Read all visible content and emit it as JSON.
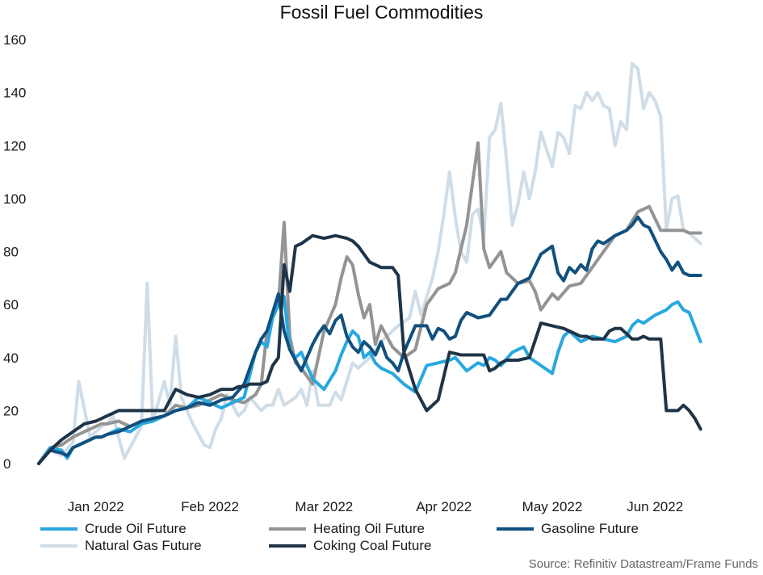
{
  "chart_data": {
    "type": "line",
    "title": "Fossil Fuel Commodities",
    "source": "Source: Refinitiv Datastream/Frame Funds",
    "ylim": [
      0,
      160
    ],
    "yticks": [
      0,
      20,
      40,
      60,
      80,
      100,
      120,
      140,
      160
    ],
    "xlim": [
      0,
      120
    ],
    "xticks": [
      {
        "label": "Jan 2022",
        "x": 10
      },
      {
        "label": "Feb 2022",
        "x": 30
      },
      {
        "label": "Mar 2022",
        "x": 50
      },
      {
        "label": "Apr 2022",
        "x": 71
      },
      {
        "label": "May 2022",
        "x": 90
      },
      {
        "label": "Jun 2022",
        "x": 108
      }
    ],
    "grid": false,
    "legend_position": "bottom",
    "series": [
      {
        "name": "Natural Gas Future",
        "color": "#cfdde8",
        "x": [
          0,
          2,
          4,
          6,
          7,
          9,
          11,
          12,
          13,
          15,
          17,
          18,
          19,
          20,
          22,
          23,
          24,
          25,
          26,
          27,
          29,
          30,
          31,
          32,
          33,
          35,
          36,
          37,
          39,
          40,
          41,
          42,
          43,
          45,
          46,
          47,
          48,
          49,
          51,
          52,
          53,
          55,
          56,
          58,
          60,
          62,
          63,
          65,
          66,
          67,
          69,
          70,
          71,
          72,
          73,
          74,
          75,
          76,
          77,
          78,
          79,
          80,
          81,
          82,
          83,
          84,
          85,
          86,
          87,
          88,
          90,
          91,
          92,
          93,
          94,
          95,
          96,
          97,
          98,
          99,
          100,
          101,
          102,
          103,
          104,
          105,
          106,
          107,
          108,
          109,
          110,
          111,
          112,
          113,
          114,
          115,
          116
        ],
        "values": [
          0,
          5,
          3,
          8,
          31,
          10,
          14,
          15,
          18,
          2,
          10,
          14,
          68,
          16,
          31,
          22,
          48,
          25,
          20,
          15,
          7,
          6,
          13,
          17,
          26,
          18,
          20,
          25,
          20,
          22,
          22,
          28,
          22,
          25,
          28,
          22,
          35,
          22,
          22,
          27,
          24,
          38,
          36,
          40,
          46,
          50,
          52,
          55,
          65,
          56,
          70,
          80,
          94,
          110,
          93,
          80,
          76,
          94,
          96,
          85,
          123,
          126,
          136,
          114,
          90,
          98,
          110,
          100,
          110,
          125,
          112,
          125,
          123,
          117,
          135,
          134,
          140,
          137,
          140,
          135,
          134,
          120,
          129,
          126,
          151,
          149,
          134,
          140,
          137,
          131,
          88,
          100,
          101,
          88,
          87,
          85,
          83
        ],
        "line_width": 4
      },
      {
        "name": "Heating Oil Future",
        "color": "#949494",
        "x": [
          0,
          2,
          4,
          6,
          8,
          10,
          11,
          12,
          14,
          16,
          18,
          20,
          22,
          24,
          26,
          28,
          30,
          32,
          34,
          36,
          38,
          39,
          40,
          42,
          43,
          44,
          45,
          46,
          48,
          50,
          52,
          53,
          54,
          55,
          56,
          57,
          58,
          59,
          60,
          62,
          64,
          66,
          68,
          70,
          72,
          73,
          75,
          77,
          78,
          79,
          81,
          82,
          84,
          86,
          87,
          88,
          90,
          91,
          93,
          95,
          97,
          99,
          101,
          103,
          105,
          107,
          109,
          111,
          113,
          114,
          116
        ],
        "values": [
          0,
          6,
          7,
          10,
          12,
          14,
          15,
          15,
          16,
          14,
          16,
          16,
          18,
          22,
          21,
          22,
          24,
          26,
          24,
          23,
          26,
          30,
          50,
          60,
          91,
          48,
          38,
          36,
          30,
          50,
          60,
          70,
          78,
          75,
          64,
          55,
          60,
          45,
          52,
          44,
          40,
          43,
          60,
          66,
          68,
          72,
          90,
          121,
          81,
          74,
          80,
          72,
          68,
          69,
          65,
          58,
          64,
          62,
          67,
          68,
          74,
          80,
          86,
          88,
          95,
          97,
          88,
          88,
          88,
          87,
          87
        ],
        "line_width": 4
      },
      {
        "name": "Crude Oil Future",
        "color": "#29a8df",
        "x": [
          0,
          2,
          4,
          5,
          6,
          8,
          10,
          11,
          12,
          14,
          16,
          18,
          20,
          22,
          24,
          26,
          28,
          30,
          32,
          34,
          36,
          38,
          39,
          40,
          41,
          42,
          43,
          44,
          45,
          46,
          48,
          50,
          52,
          53,
          54,
          55,
          56,
          57,
          58,
          59,
          60,
          62,
          64,
          66,
          68,
          70,
          72,
          73,
          75,
          77,
          78,
          79,
          80,
          81,
          83,
          85,
          86,
          88,
          90,
          91,
          92,
          93,
          95,
          97,
          99,
          101,
          103,
          104,
          105,
          106,
          108,
          110,
          111,
          112,
          113,
          114,
          116
        ],
        "values": [
          0,
          6,
          5,
          2,
          6,
          8,
          10,
          10,
          11,
          13,
          12,
          15,
          16,
          18,
          20,
          21,
          25,
          23,
          21,
          23,
          25,
          42,
          46,
          44,
          55,
          60,
          63,
          43,
          40,
          42,
          32,
          28,
          35,
          41,
          46,
          50,
          48,
          40,
          42,
          38,
          36,
          34,
          30,
          27,
          37,
          38,
          39,
          40,
          35,
          38,
          37,
          40,
          39,
          37,
          42,
          44,
          40,
          37,
          34,
          42,
          48,
          50,
          46,
          48,
          47,
          46,
          48,
          52,
          54,
          53,
          56,
          58,
          60,
          61,
          58,
          57,
          46
        ],
        "line_width": 4
      },
      {
        "name": "Gasoline Future",
        "color": "#11507f",
        "x": [
          0,
          2,
          4,
          5,
          6,
          8,
          10,
          11,
          12,
          14,
          16,
          17,
          18,
          20,
          22,
          24,
          26,
          28,
          30,
          32,
          34,
          36,
          38,
          39,
          40,
          41,
          42,
          43,
          44,
          46,
          48,
          49,
          50,
          51,
          52,
          53,
          54,
          55,
          56,
          57,
          58,
          59,
          60,
          61,
          62,
          63,
          64,
          66,
          68,
          69,
          70,
          71,
          72,
          73,
          74,
          75,
          77,
          79,
          80,
          81,
          82,
          83,
          84,
          86,
          88,
          90,
          91,
          92,
          93,
          94,
          95,
          96,
          97,
          98,
          99,
          101,
          103,
          104,
          105,
          106,
          107,
          109,
          110,
          111,
          112,
          113,
          114,
          115,
          116
        ],
        "values": [
          0,
          5,
          4,
          3,
          6,
          8,
          10,
          10,
          11,
          12,
          14,
          15,
          16,
          17,
          18,
          20,
          21,
          23,
          22,
          24,
          25,
          30,
          42,
          47,
          50,
          57,
          64,
          50,
          43,
          35,
          45,
          49,
          52,
          49,
          54,
          56,
          48,
          44,
          42,
          46,
          44,
          41,
          46,
          40,
          38,
          35,
          42,
          52,
          52,
          47,
          51,
          50,
          47,
          48,
          54,
          57,
          55,
          56,
          59,
          62,
          62,
          65,
          68,
          70,
          79,
          82,
          72,
          69,
          74,
          72,
          75,
          73,
          81,
          84,
          83,
          86,
          88,
          90,
          93,
          90,
          89,
          80,
          77,
          73,
          76,
          72,
          71,
          71,
          71
        ],
        "line_width": 4
      },
      {
        "name": "Coking Coal Future",
        "color": "#1e3549",
        "x": [
          0,
          2,
          4,
          6,
          8,
          10,
          12,
          14,
          16,
          18,
          20,
          22,
          24,
          26,
          28,
          30,
          32,
          34,
          35,
          36,
          37,
          38,
          39,
          40,
          41,
          42,
          43,
          44,
          45,
          46,
          48,
          50,
          52,
          54,
          55,
          56,
          58,
          60,
          62,
          63,
          64,
          66,
          68,
          70,
          72,
          74,
          76,
          78,
          79,
          80,
          81,
          82,
          84,
          86,
          88,
          90,
          92,
          94,
          95,
          96,
          97,
          98,
          99,
          100,
          101,
          102,
          103,
          104,
          105,
          106,
          107,
          109,
          110,
          111,
          112,
          113,
          114,
          115,
          116
        ],
        "values": [
          0,
          5,
          9,
          12,
          15,
          16,
          18,
          20,
          20,
          20,
          20,
          20,
          28,
          26,
          25,
          26,
          28,
          28,
          29,
          29,
          30,
          30,
          30,
          31,
          37,
          40,
          75,
          65,
          82,
          83,
          86,
          85,
          86,
          85,
          84,
          82,
          76,
          74,
          74,
          71,
          42,
          28,
          20,
          24,
          42,
          41,
          41,
          41,
          35,
          36,
          38,
          39,
          39,
          40,
          53,
          52,
          51,
          49,
          48,
          48,
          47,
          47,
          47,
          50,
          51,
          51,
          49,
          47,
          47,
          48,
          47,
          47,
          20,
          20,
          20,
          22,
          20,
          17,
          13
        ]
      }
    ]
  }
}
